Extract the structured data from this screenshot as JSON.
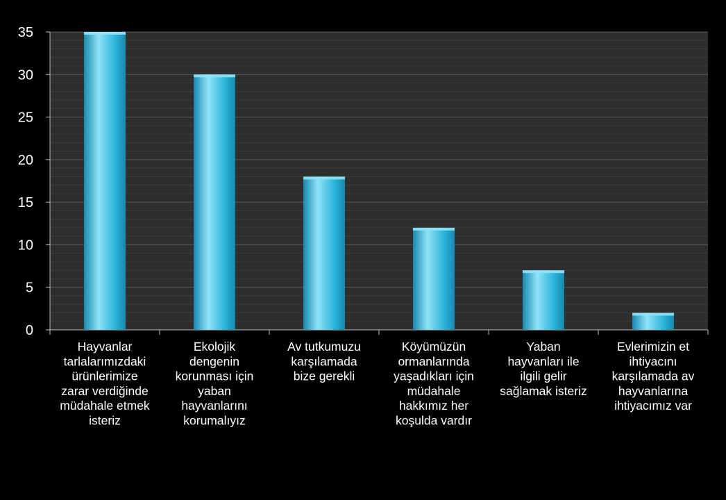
{
  "chart_data": {
    "type": "bar",
    "categories": [
      "Hayvanlar tarlalarımızdaki ürünlerimize zarar verdiğinde müdahale etmek isteriz",
      "Ekolojik dengenin korunması için yaban hayvanlarını korumalıyız",
      "Av tutkumuzu karşılamada bize gerekli",
      "Köyümüzün ormanlarında yaşadıkları için müdahale hakkımız her koşulda vardır",
      "Yaban hayvanları ile ilgili gelir sağlamak isteriz",
      "Evlerimizin et ihtiyacını karşılamada av hayvanlarına ihtiyacımız var"
    ],
    "category_lines": [
      [
        "Hayvanlar",
        "tarlalarımızdaki",
        "ürünlerimize",
        "zarar verdiğinde",
        "müdahale etmek",
        "isteriz"
      ],
      [
        "Ekolojik",
        "dengenin",
        "korunması için",
        "yaban",
        "hayvanlarını",
        "korumalıyız"
      ],
      [
        "Av tutkumuzu",
        "karşılamada",
        "bize gerekli"
      ],
      [
        "Köyümüzün",
        "ormanlarında",
        "yaşadıkları için",
        "müdahale",
        "hakkımız her",
        "koşulda vardır"
      ],
      [
        "Yaban",
        "hayvanları ile",
        "ilgili gelir",
        "sağlamak isteriz"
      ],
      [
        "Evlerimizin et",
        "ihtiyacını",
        "karşılamada av",
        "hayvanlarına",
        "ihtiyacımız var"
      ]
    ],
    "values": [
      35,
      30,
      18,
      12,
      7,
      2
    ],
    "ylim": [
      0,
      35
    ],
    "yticks": [
      "0",
      "5",
      "10",
      "15",
      "20",
      "25",
      "30",
      "35"
    ],
    "title": "",
    "xlabel": "",
    "ylabel": "",
    "grid": true,
    "colors": {
      "background": "#000000",
      "plot_area": "#2e2e2e",
      "gridline": "#5a5a5a",
      "minor_gridline": "#3c3c3c",
      "bar": "#2ab4da",
      "bar_highlight": "#8fe3f7",
      "bar_shadow": "#1789b0",
      "text": "#ffffff"
    }
  }
}
